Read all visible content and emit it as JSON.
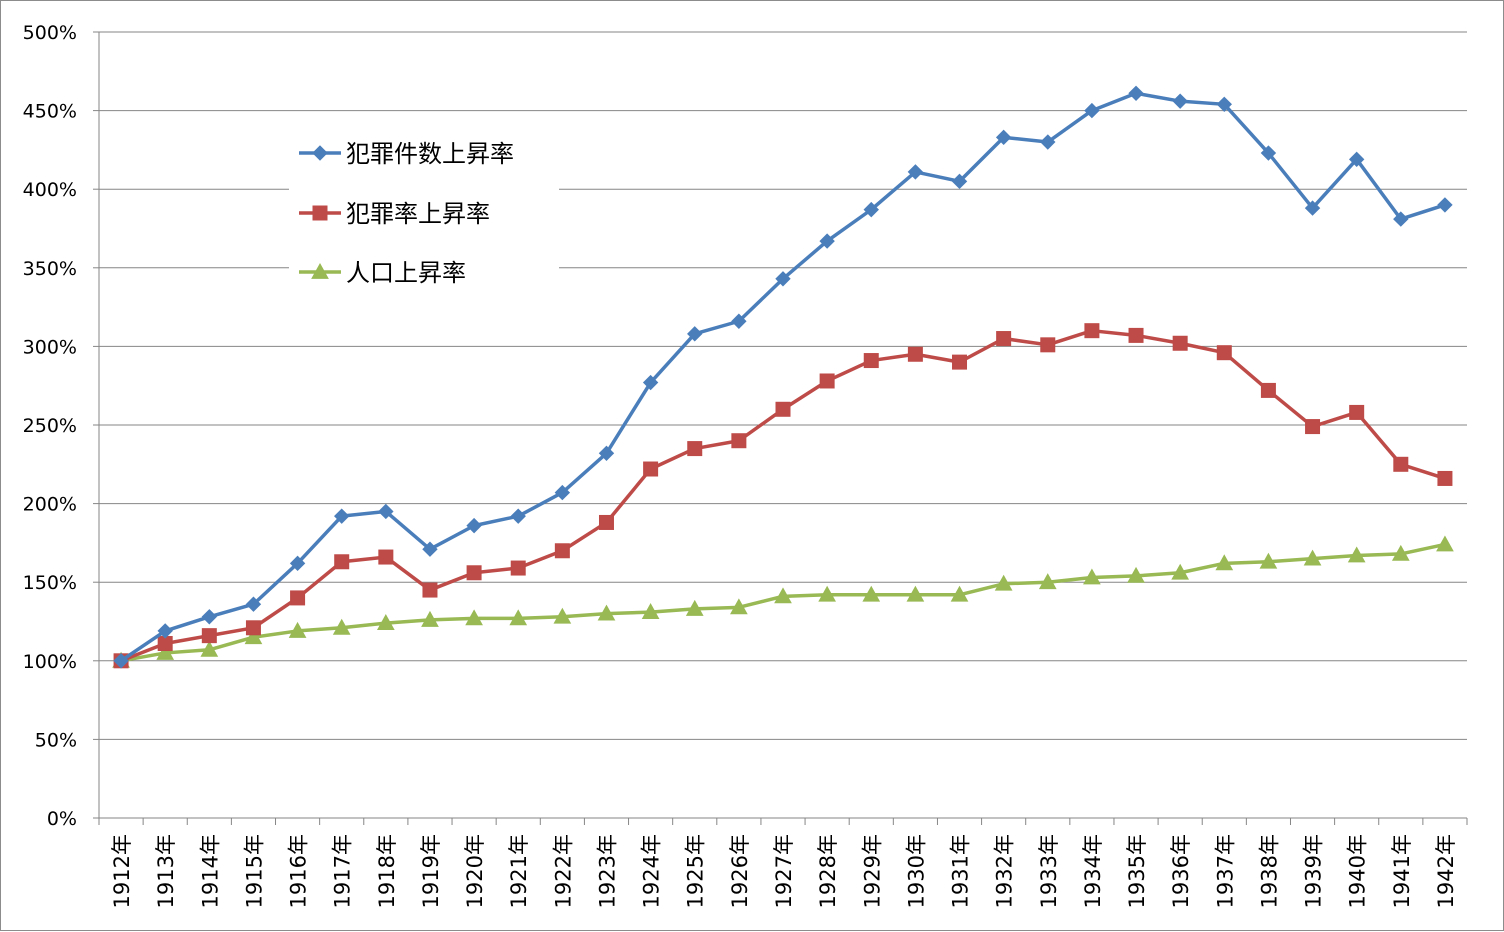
{
  "chart_data": {
    "type": "line",
    "title": "",
    "xlabel": "",
    "ylabel": "",
    "ylim": [
      0,
      500
    ],
    "y_tick_step": 50,
    "y_tick_format": "percent",
    "grid": "horizontal",
    "legend_position": "top-left",
    "x": [
      "1912年",
      "1913年",
      "1914年",
      "1915年",
      "1916年",
      "1917年",
      "1918年",
      "1919年",
      "1920年",
      "1921年",
      "1922年",
      "1923年",
      "1924年",
      "1925年",
      "1926年",
      "1927年",
      "1928年",
      "1929年",
      "1930年",
      "1931年",
      "1932年",
      "1933年",
      "1934年",
      "1935年",
      "1936年",
      "1937年",
      "1938年",
      "1939年",
      "1940年",
      "1941年",
      "1942年"
    ],
    "series": [
      {
        "name": "犯罪件数上昇率",
        "color": "#4a7ebb",
        "marker": "diamond",
        "values": [
          100,
          119,
          128,
          136,
          162,
          192,
          195,
          171,
          186,
          192,
          207,
          232,
          277,
          308,
          316,
          343,
          367,
          387,
          411,
          405,
          433,
          430,
          450,
          461,
          456,
          454,
          423,
          388,
          419,
          381,
          390
        ]
      },
      {
        "name": "犯罪率上昇率",
        "color": "#be4b48",
        "marker": "square",
        "values": [
          100,
          111,
          116,
          121,
          140,
          163,
          166,
          145,
          156,
          159,
          170,
          188,
          222,
          235,
          240,
          260,
          278,
          291,
          295,
          290,
          305,
          301,
          310,
          307,
          302,
          296,
          272,
          249,
          258,
          225,
          216
        ]
      },
      {
        "name": "人口上昇率",
        "color": "#98b954",
        "marker": "triangle",
        "values": [
          100,
          105,
          107,
          115,
          119,
          121,
          124,
          126,
          127,
          127,
          128,
          130,
          131,
          133,
          134,
          141,
          142,
          142,
          142,
          142,
          149,
          150,
          153,
          154,
          156,
          162,
          163,
          165,
          167,
          168,
          174
        ]
      }
    ]
  }
}
